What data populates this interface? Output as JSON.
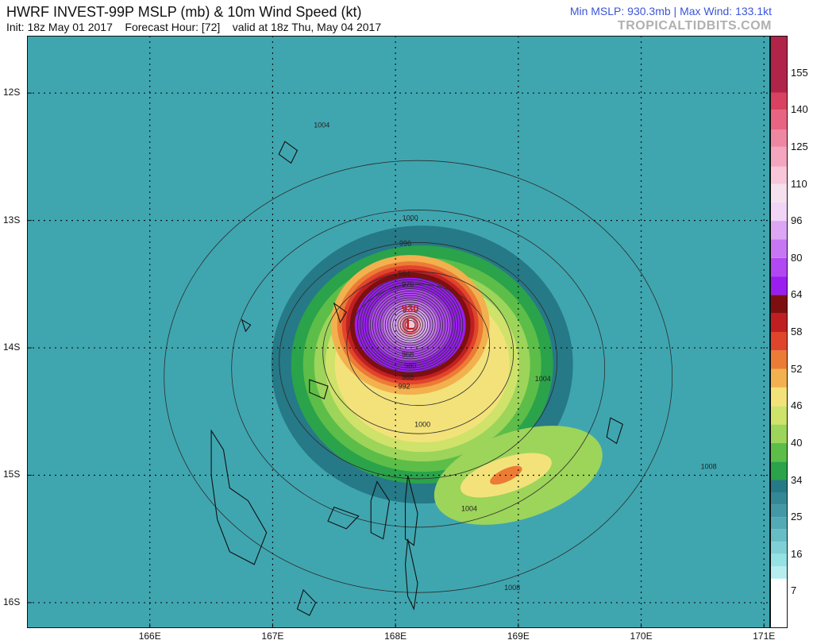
{
  "header": {
    "title": "HWRF INVEST-99P MSLP (mb) & 10m Wind Speed (kt)",
    "subtitle": "Init: 18z May 01 2017    Forecast Hour: [72]    valid at 18z Thu, May 04 2017",
    "stats": "Min MSLP: 930.3mb | Max Wind: 133.1kt",
    "brand": "TROPICALTIDBITS.COM"
  },
  "map": {
    "lon_range": [
      165.0,
      171.05
    ],
    "lat_range": [
      -16.2,
      -11.55
    ],
    "lat_ticks": [
      {
        "lat": -12,
        "label": "12S"
      },
      {
        "lat": -13,
        "label": "13S"
      },
      {
        "lat": -14,
        "label": "14S"
      },
      {
        "lat": -15,
        "label": "15S"
      },
      {
        "lat": -16,
        "label": "16S"
      }
    ],
    "lon_ticks": [
      {
        "lon": 166,
        "label": "166E"
      },
      {
        "lon": 167,
        "label": "167E"
      },
      {
        "lon": 168,
        "label": "168E"
      },
      {
        "lon": 169,
        "label": "169E"
      },
      {
        "lon": 170,
        "label": "170E"
      },
      {
        "lon": 171,
        "label": "171E"
      }
    ],
    "storm_center": {
      "lon": 168.12,
      "lat": -13.82
    },
    "min_mslp_label": "930",
    "low_symbol": "L",
    "isobar_labels": [
      {
        "text": "1004",
        "lon": 167.4,
        "lat": -12.27
      },
      {
        "text": "1000",
        "lon": 168.12,
        "lat": -13.0
      },
      {
        "text": "996",
        "lon": 168.08,
        "lat": -13.2
      },
      {
        "text": "984",
        "lon": 168.07,
        "lat": -13.44
      },
      {
        "text": "976",
        "lon": 168.1,
        "lat": -13.52
      },
      {
        "text": "968",
        "lon": 168.1,
        "lat": -14.07
      },
      {
        "text": "980",
        "lon": 168.12,
        "lat": -14.16
      },
      {
        "text": "988",
        "lon": 168.1,
        "lat": -14.25
      },
      {
        "text": "992",
        "lon": 168.07,
        "lat": -14.32
      },
      {
        "text": "1000",
        "lon": 168.22,
        "lat": -14.62
      },
      {
        "text": "1004",
        "lon": 169.2,
        "lat": -14.26
      },
      {
        "text": "1004",
        "lon": 168.6,
        "lat": -15.28
      },
      {
        "text": "1008",
        "lon": 170.55,
        "lat": -14.95
      },
      {
        "text": "1008",
        "lon": 168.95,
        "lat": -15.9
      }
    ],
    "colors": {
      "ocean": "#3fa6b0",
      "land_outline": "#111111",
      "grid": "#111111",
      "isobar": "#2c2c2c"
    }
  },
  "legend": {
    "labels": [
      "7",
      "16",
      "25",
      "34",
      "40",
      "46",
      "52",
      "58",
      "64",
      "80",
      "96",
      "110",
      "125",
      "140",
      "155"
    ],
    "bands": [
      {
        "from": 0,
        "to": 10,
        "color": "#ffffff"
      },
      {
        "from": 10,
        "to": 13,
        "color": "#b6eef0"
      },
      {
        "from": 13,
        "to": 16,
        "color": "#95e2e5"
      },
      {
        "from": 16,
        "to": 19,
        "color": "#7ed0d6"
      },
      {
        "from": 19,
        "to": 22,
        "color": "#67bdc6"
      },
      {
        "from": 22,
        "to": 25,
        "color": "#52aab5"
      },
      {
        "from": 25,
        "to": 28,
        "color": "#4299a5"
      },
      {
        "from": 28,
        "to": 31,
        "color": "#338896"
      },
      {
        "from": 31,
        "to": 34,
        "color": "#267987"
      },
      {
        "from": 34,
        "to": 37,
        "color": "#2aa34a"
      },
      {
        "from": 37,
        "to": 40,
        "color": "#5cbe48"
      },
      {
        "from": 40,
        "to": 43,
        "color": "#9dd45a"
      },
      {
        "from": 43,
        "to": 46,
        "color": "#cfe26a"
      },
      {
        "from": 46,
        "to": 49,
        "color": "#f3e27a"
      },
      {
        "from": 49,
        "to": 52,
        "color": "#f2b14e"
      },
      {
        "from": 52,
        "to": 55,
        "color": "#ec7b35"
      },
      {
        "from": 55,
        "to": 58,
        "color": "#e0452b"
      },
      {
        "from": 58,
        "to": 61,
        "color": "#c01f22"
      },
      {
        "from": 61,
        "to": 64,
        "color": "#7e0f10"
      },
      {
        "from": 64,
        "to": 72,
        "color": "#9a1ef0"
      },
      {
        "from": 72,
        "to": 80,
        "color": "#b247f4"
      },
      {
        "from": 80,
        "to": 88,
        "color": "#c777f3"
      },
      {
        "from": 88,
        "to": 96,
        "color": "#dca6f5"
      },
      {
        "from": 96,
        "to": 103,
        "color": "#f1d4f6"
      },
      {
        "from": 103,
        "to": 110,
        "color": "#f5e0ee"
      },
      {
        "from": 110,
        "to": 117,
        "color": "#f7c6d8"
      },
      {
        "from": 117,
        "to": 125,
        "color": "#f3a6be"
      },
      {
        "from": 125,
        "to": 132,
        "color": "#ef87a2"
      },
      {
        "from": 132,
        "to": 140,
        "color": "#e96382"
      },
      {
        "from": 140,
        "to": 147,
        "color": "#d8415f"
      },
      {
        "from": 147,
        "to": 160,
        "color": "#b0244a"
      }
    ]
  }
}
